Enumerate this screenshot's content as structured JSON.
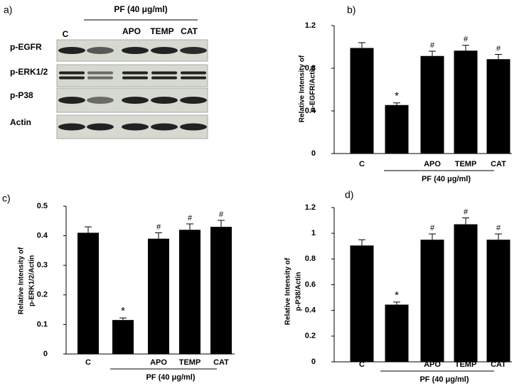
{
  "blot": {
    "panel_label": "a)",
    "group_label": "PF  (40 μg/ml)",
    "lanes": [
      "C",
      "APO",
      "TEMP",
      "CAT"
    ],
    "rows": [
      "p-EGFR",
      "p-ERK1/2",
      "p-P38",
      "Actin"
    ]
  },
  "chart_data": [
    {
      "type": "bar",
      "panel_label": "b)",
      "ylabel": [
        "Relative Intensity of",
        "p-EGFR/Actin"
      ],
      "group_label": "PF  (40 μg/ml)",
      "categories": [
        "C",
        null,
        "APO",
        "TEMP",
        "CAT"
      ],
      "values": [
        0.99,
        0.455,
        0.915,
        0.965,
        0.885
      ],
      "errors": [
        0.05,
        0.02,
        0.045,
        0.05,
        0.045
      ],
      "markers": [
        null,
        "*",
        "#",
        "#",
        "#"
      ],
      "color": "#000000",
      "ylim": [
        0,
        1.2
      ],
      "yticks": [
        0,
        0.4,
        0.8,
        1.2
      ]
    },
    {
      "type": "bar",
      "panel_label": "c)",
      "ylabel": [
        "Relative Intensity of",
        "p-ERK1/2/Actin"
      ],
      "group_label": "PF  (40 μg/ml)",
      "categories": [
        "C",
        null,
        "APO",
        "TEMP",
        "CAT"
      ],
      "values": [
        0.41,
        0.115,
        0.39,
        0.42,
        0.43
      ],
      "errors": [
        0.02,
        0.007,
        0.02,
        0.02,
        0.022
      ],
      "markers": [
        null,
        "*",
        "#",
        "#",
        "#"
      ],
      "color": "#000000",
      "ylim": [
        0,
        0.5
      ],
      "yticks": [
        0,
        0.1,
        0.2,
        0.3,
        0.4,
        0.5
      ]
    },
    {
      "type": "bar",
      "panel_label": "d)",
      "ylabel": [
        "Relative Intensity of",
        "p-P38/Actin"
      ],
      "group_label": "PF  (40 μg/ml)",
      "categories": [
        "C",
        null,
        "APO",
        "TEMP",
        "CAT"
      ],
      "values": [
        0.905,
        0.445,
        0.95,
        1.07,
        0.95
      ],
      "errors": [
        0.045,
        0.02,
        0.045,
        0.05,
        0.045
      ],
      "markers": [
        null,
        "*",
        "#",
        "#",
        "#"
      ],
      "color": "#000000",
      "ylim": [
        0,
        1.2
      ],
      "yticks": [
        0,
        0.2,
        0.4,
        0.6,
        0.8,
        1,
        1.2
      ]
    }
  ]
}
